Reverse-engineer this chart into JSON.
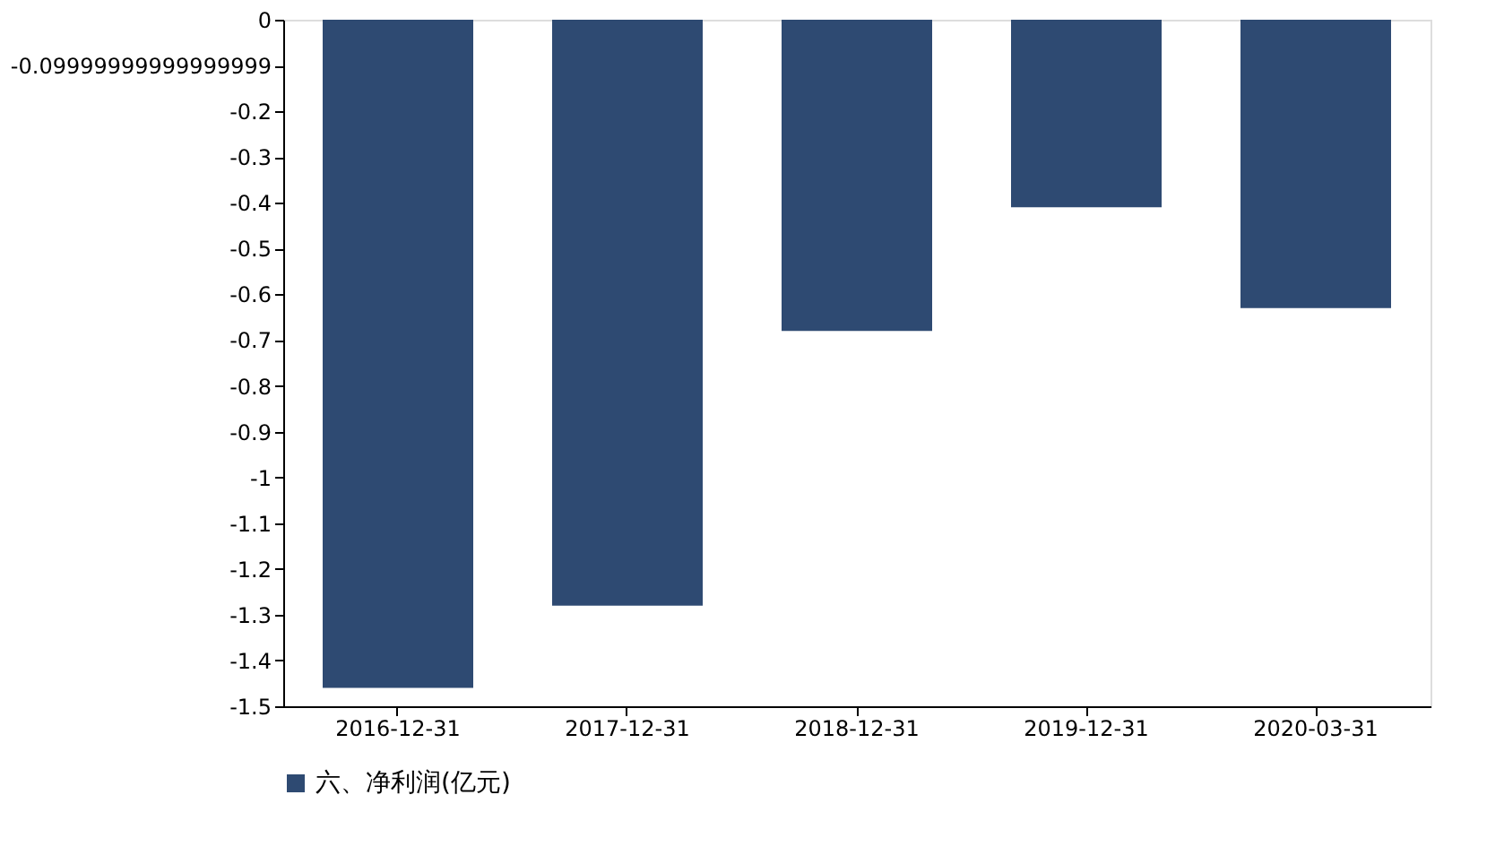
{
  "chart_data": {
    "type": "bar",
    "categories": [
      "2016-12-31",
      "2017-12-31",
      "2018-12-31",
      "2019-12-31",
      "2020-03-31"
    ],
    "series": [
      {
        "name": "六、净利润(亿元)",
        "color": "#2e4a72",
        "values": [
          -1.46,
          -1.28,
          -0.68,
          -0.41,
          -0.63
        ]
      }
    ],
    "ylim": [
      -1.5,
      0
    ],
    "yticks": [
      0,
      {
        "value": -0.1,
        "label": "-0.09999999999999999"
      },
      -0.2,
      -0.3,
      -0.4,
      -0.5,
      -0.6,
      -0.7,
      -0.8,
      -0.9,
      -1,
      -1.1,
      -1.2,
      -1.3,
      -1.4,
      -1.5
    ],
    "grid": false,
    "legend": "bottom"
  }
}
